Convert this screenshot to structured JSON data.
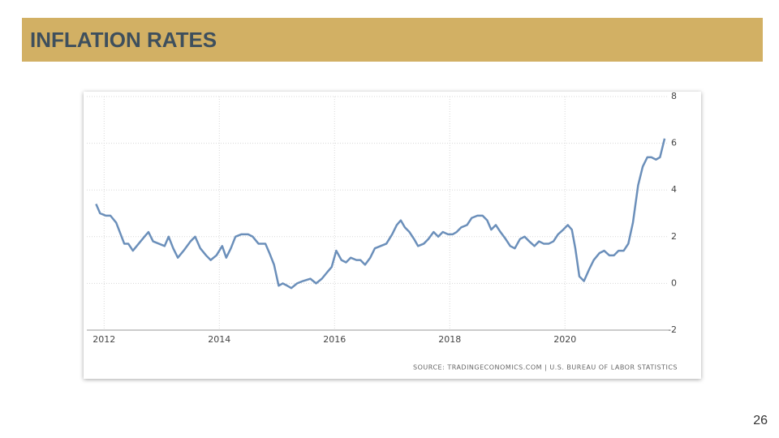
{
  "slide_title": "INFLATION RATES",
  "page_number": "26",
  "chart_data": {
    "type": "line",
    "source": "SOURCE: TRADINGECONOMICS.COM | U.S. BUREAU OF LABOR STATISTICS",
    "x": [
      2011.86,
      2011.93,
      2012.03,
      2012.11,
      2012.21,
      2012.35,
      2012.42,
      2012.5,
      2012.6,
      2012.7,
      2012.77,
      2012.85,
      2012.95,
      2013.05,
      2013.12,
      2013.2,
      2013.28,
      2013.38,
      2013.5,
      2013.58,
      2013.67,
      2013.77,
      2013.85,
      2013.95,
      2014.05,
      2014.12,
      2014.2,
      2014.28,
      2014.38,
      2014.5,
      2014.58,
      2014.68,
      2014.8,
      2014.87,
      2014.95,
      2015.03,
      2015.1,
      2015.18,
      2015.25,
      2015.35,
      2015.45,
      2015.58,
      2015.68,
      2015.78,
      2015.88,
      2015.95,
      2016.03,
      2016.12,
      2016.2,
      2016.28,
      2016.38,
      2016.45,
      2016.53,
      2016.62,
      2016.7,
      2016.8,
      2016.9,
      2017.0,
      2017.08,
      2017.15,
      2017.22,
      2017.3,
      2017.38,
      2017.45,
      2017.55,
      2017.63,
      2017.72,
      2017.8,
      2017.88,
      2017.97,
      2018.05,
      2018.12,
      2018.2,
      2018.3,
      2018.38,
      2018.48,
      2018.57,
      2018.65,
      2018.72,
      2018.8,
      2018.88,
      2018.97,
      2019.05,
      2019.13,
      2019.22,
      2019.3,
      2019.38,
      2019.47,
      2019.55,
      2019.63,
      2019.72,
      2019.8,
      2019.88,
      2019.97,
      2020.05,
      2020.12,
      2020.18,
      2020.25,
      2020.33,
      2020.42,
      2020.5,
      2020.6,
      2020.68,
      2020.77,
      2020.85,
      2020.93,
      2021.02,
      2021.1,
      2021.18,
      2021.27,
      2021.35,
      2021.43,
      2021.5,
      2021.58,
      2021.65,
      2021.73
    ],
    "series": [
      {
        "name": "Inflation rate",
        "color": "#6b8fba",
        "values": [
          3.4,
          3.0,
          2.9,
          2.9,
          2.6,
          1.7,
          1.7,
          1.4,
          1.7,
          2.0,
          2.2,
          1.8,
          1.7,
          1.6,
          2.0,
          1.5,
          1.1,
          1.4,
          1.8,
          2.0,
          1.5,
          1.2,
          1.0,
          1.2,
          1.6,
          1.1,
          1.5,
          2.0,
          2.1,
          2.1,
          2.0,
          1.7,
          1.7,
          1.3,
          0.8,
          -0.1,
          0.0,
          -0.1,
          -0.2,
          0.0,
          0.1,
          0.2,
          0.0,
          0.2,
          0.5,
          0.7,
          1.4,
          1.0,
          0.9,
          1.1,
          1.0,
          1.0,
          0.8,
          1.1,
          1.5,
          1.6,
          1.7,
          2.1,
          2.5,
          2.7,
          2.4,
          2.2,
          1.9,
          1.6,
          1.7,
          1.9,
          2.2,
          2.0,
          2.2,
          2.1,
          2.1,
          2.2,
          2.4,
          2.5,
          2.8,
          2.9,
          2.9,
          2.7,
          2.3,
          2.5,
          2.2,
          1.9,
          1.6,
          1.5,
          1.9,
          2.0,
          1.8,
          1.6,
          1.8,
          1.7,
          1.7,
          1.8,
          2.1,
          2.3,
          2.5,
          2.3,
          1.5,
          0.3,
          0.1,
          0.6,
          1.0,
          1.3,
          1.4,
          1.2,
          1.2,
          1.4,
          1.4,
          1.7,
          2.6,
          4.2,
          5.0,
          5.4,
          5.4,
          5.3,
          5.4,
          6.2
        ]
      }
    ],
    "xlim": [
      2011.7,
      2021.8
    ],
    "xticks": [
      2012,
      2014,
      2016,
      2018,
      2020
    ],
    "ylim": [
      -2,
      8
    ],
    "yticks": [
      -2,
      0,
      2,
      4,
      6,
      8
    ],
    "grid": true
  }
}
